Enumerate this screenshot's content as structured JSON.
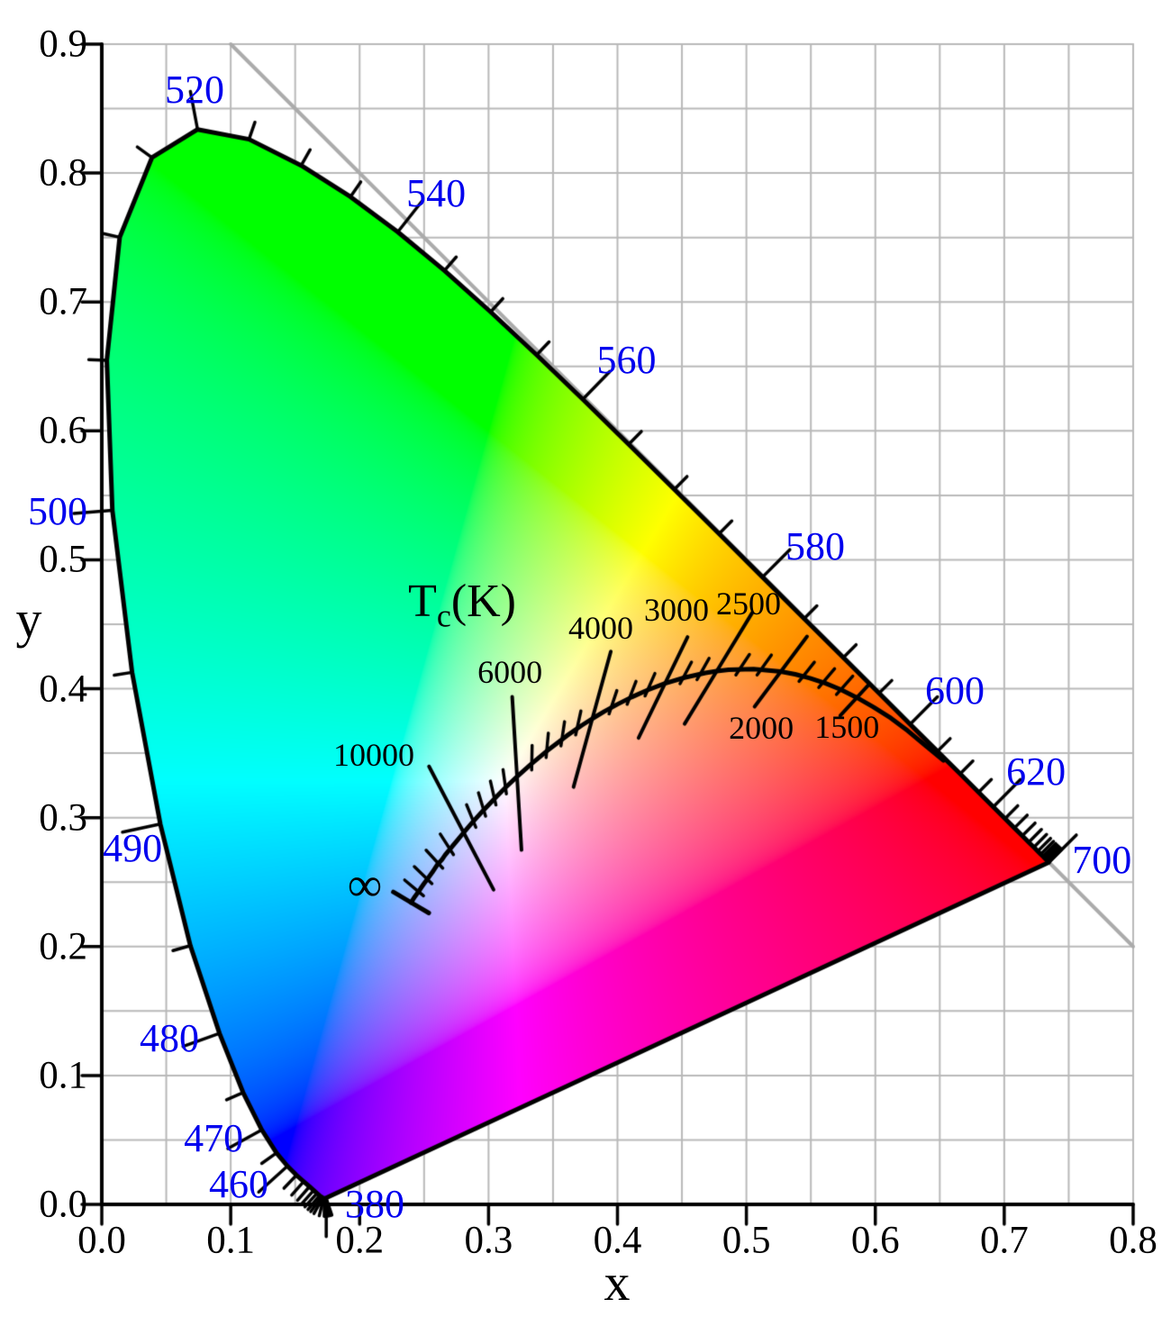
{
  "colors": {
    "background": "#ffffff",
    "grid": "#b9b9b9",
    "diagonal_line": "#ababab",
    "outline": "#000000",
    "planckian_curve": "#000000",
    "wavelength_label_color": "#0000ee",
    "temperature_label_color": "#000000",
    "axis_color": "#000000"
  },
  "chart_data": {
    "type": "line",
    "description": "CIE 1931 xy chromaticity diagram: spectral locus horseshoe filled with chromaticity colors, Planckian locus with colour-temperature isotherms, gray line x+y=1",
    "xlabel": "x",
    "ylabel": "y",
    "xlim": [
      0,
      0.8
    ],
    "ylim": [
      0,
      0.9
    ],
    "grid_step": 0.05,
    "tick_step": 0.1,
    "grid_on": true,
    "x_tick_labels": [
      "0.0",
      "0.1",
      "0.2",
      "0.3",
      "0.4",
      "0.5",
      "0.6",
      "0.7",
      "0.8"
    ],
    "y_tick_labels": [
      "0.0",
      "0.1",
      "0.2",
      "0.3",
      "0.4",
      "0.5",
      "0.6",
      "0.7",
      "0.8",
      "0.9"
    ],
    "diagonal_gray_line": {
      "x1": 0.1,
      "y1": 0.9,
      "x2": 0.8,
      "y2": 0.2
    },
    "spectral_locus": [
      [
        380,
        0.1741,
        0.005
      ],
      [
        385,
        0.174,
        0.005
      ],
      [
        390,
        0.1738,
        0.0049
      ],
      [
        395,
        0.1736,
        0.0049
      ],
      [
        400,
        0.1733,
        0.0048
      ],
      [
        405,
        0.173,
        0.0048
      ],
      [
        410,
        0.1726,
        0.0048
      ],
      [
        415,
        0.1721,
        0.0048
      ],
      [
        420,
        0.1714,
        0.0051
      ],
      [
        425,
        0.1703,
        0.0058
      ],
      [
        430,
        0.1689,
        0.0069
      ],
      [
        435,
        0.1669,
        0.0086
      ],
      [
        440,
        0.1644,
        0.0109
      ],
      [
        445,
        0.1611,
        0.0138
      ],
      [
        450,
        0.1566,
        0.0177
      ],
      [
        455,
        0.151,
        0.0227
      ],
      [
        460,
        0.144,
        0.0297
      ],
      [
        465,
        0.1355,
        0.0399
      ],
      [
        470,
        0.1241,
        0.0578
      ],
      [
        475,
        0.1096,
        0.0868
      ],
      [
        480,
        0.0913,
        0.1327
      ],
      [
        485,
        0.0687,
        0.2007
      ],
      [
        490,
        0.0454,
        0.295
      ],
      [
        495,
        0.0235,
        0.4127
      ],
      [
        500,
        0.0082,
        0.5384
      ],
      [
        505,
        0.0039,
        0.6548
      ],
      [
        510,
        0.0139,
        0.7502
      ],
      [
        515,
        0.0389,
        0.812
      ],
      [
        520,
        0.0743,
        0.8338
      ],
      [
        525,
        0.1142,
        0.8262
      ],
      [
        530,
        0.1547,
        0.8059
      ],
      [
        535,
        0.1929,
        0.7816
      ],
      [
        540,
        0.2296,
        0.7543
      ],
      [
        545,
        0.2658,
        0.7243
      ],
      [
        550,
        0.3016,
        0.6923
      ],
      [
        555,
        0.3373,
        0.6589
      ],
      [
        560,
        0.3731,
        0.6245
      ],
      [
        565,
        0.4087,
        0.5896
      ],
      [
        570,
        0.4441,
        0.5547
      ],
      [
        575,
        0.4788,
        0.5202
      ],
      [
        580,
        0.5125,
        0.4866
      ],
      [
        585,
        0.5448,
        0.4544
      ],
      [
        590,
        0.5752,
        0.4242
      ],
      [
        595,
        0.6029,
        0.3965
      ],
      [
        600,
        0.627,
        0.3725
      ],
      [
        605,
        0.6482,
        0.3514
      ],
      [
        610,
        0.6658,
        0.334
      ],
      [
        615,
        0.6801,
        0.3197
      ],
      [
        620,
        0.6915,
        0.3083
      ],
      [
        625,
        0.7006,
        0.2993
      ],
      [
        630,
        0.7079,
        0.292
      ],
      [
        635,
        0.714,
        0.2859
      ],
      [
        640,
        0.719,
        0.2809
      ],
      [
        645,
        0.723,
        0.277
      ],
      [
        650,
        0.726,
        0.274
      ],
      [
        655,
        0.7283,
        0.2717
      ],
      [
        660,
        0.73,
        0.27
      ],
      [
        665,
        0.7311,
        0.2689
      ],
      [
        670,
        0.732,
        0.268
      ],
      [
        675,
        0.7327,
        0.2673
      ],
      [
        680,
        0.7334,
        0.2666
      ],
      [
        685,
        0.734,
        0.266
      ],
      [
        690,
        0.7344,
        0.2656
      ],
      [
        695,
        0.7346,
        0.2654
      ],
      [
        700,
        0.7347,
        0.2653
      ]
    ],
    "spectral_tick_step_nm": 5,
    "wavelength_labels": [
      {
        "nm": 380,
        "text": "380",
        "x": 0.2117,
        "y": 0.0
      },
      {
        "nm": 460,
        "text": "460",
        "x": 0.1062,
        "y": 0.0154
      },
      {
        "nm": 470,
        "text": "470",
        "x": 0.0867,
        "y": 0.051
      },
      {
        "nm": 480,
        "text": "480",
        "x": 0.0524,
        "y": 0.1286
      },
      {
        "nm": 490,
        "text": "490",
        "x": 0.0238,
        "y": 0.276
      },
      {
        "nm": 500,
        "text": "500",
        "x": -0.0342,
        "y": 0.5374
      },
      {
        "nm": 520,
        "text": "520",
        "x": 0.072,
        "y": 0.8645
      },
      {
        "nm": 540,
        "text": "540",
        "x": 0.2593,
        "y": 0.7841
      },
      {
        "nm": 560,
        "text": "560",
        "x": 0.407,
        "y": 0.6545
      },
      {
        "nm": 580,
        "text": "580",
        "x": 0.5534,
        "y": 0.5101
      },
      {
        "nm": 600,
        "text": "600",
        "x": 0.6617,
        "y": 0.3983
      },
      {
        "nm": 620,
        "text": "620",
        "x": 0.7246,
        "y": 0.3354
      },
      {
        "nm": 700,
        "text": "700",
        "x": 0.7757,
        "y": 0.2669
      }
    ],
    "planckian_locus": [
      [
        1000,
        0.6528,
        0.3444
      ],
      [
        1100,
        0.6386,
        0.3562
      ],
      [
        1200,
        0.625,
        0.3675
      ],
      [
        1300,
        0.6121,
        0.3772
      ],
      [
        1400,
        0.5985,
        0.3858
      ],
      [
        1500,
        0.5857,
        0.3931
      ],
      [
        1600,
        0.5732,
        0.3993
      ],
      [
        1700,
        0.5611,
        0.4043
      ],
      [
        1800,
        0.5493,
        0.4082
      ],
      [
        1900,
        0.5378,
        0.4112
      ],
      [
        2000,
        0.5267,
        0.4133
      ],
      [
        2200,
        0.5056,
        0.4152
      ],
      [
        2400,
        0.4862,
        0.4147
      ],
      [
        2500,
        0.477,
        0.4137
      ],
      [
        2600,
        0.4682,
        0.4123
      ],
      [
        2800,
        0.4519,
        0.4086
      ],
      [
        3000,
        0.4369,
        0.4041
      ],
      [
        3200,
        0.4234,
        0.399
      ],
      [
        3400,
        0.411,
        0.3935
      ],
      [
        3600,
        0.3999,
        0.3879
      ],
      [
        3800,
        0.3897,
        0.3823
      ],
      [
        4000,
        0.3805,
        0.3768
      ],
      [
        4200,
        0.372,
        0.3714
      ],
      [
        4500,
        0.3608,
        0.3636
      ],
      [
        5000,
        0.3451,
        0.3516
      ],
      [
        5500,
        0.3325,
        0.3411
      ],
      [
        6000,
        0.3221,
        0.3318
      ],
      [
        6500,
        0.3135,
        0.3237
      ],
      [
        7000,
        0.3064,
        0.3166
      ],
      [
        7500,
        0.3004,
        0.3103
      ],
      [
        8000,
        0.2952,
        0.3048
      ],
      [
        8500,
        0.2908,
        0.3
      ],
      [
        9000,
        0.2869,
        0.2956
      ],
      [
        9500,
        0.2836,
        0.2918
      ],
      [
        10000,
        0.2807,
        0.2884
      ],
      [
        11000,
        0.2759,
        0.2826
      ],
      [
        12000,
        0.2721,
        0.278
      ],
      [
        12500,
        0.2701,
        0.2755
      ],
      [
        13000,
        0.2689,
        0.2742
      ],
      [
        14000,
        0.2663,
        0.271
      ],
      [
        15000,
        0.2637,
        0.2672
      ],
      [
        17000,
        0.2606,
        0.264
      ],
      [
        20000,
        0.2564,
        0.2576
      ],
      [
        25000,
        0.2525,
        0.2523
      ],
      [
        30000,
        0.25,
        0.2489
      ],
      [
        40000,
        0.2472,
        0.2449
      ],
      [
        50000,
        0.2457,
        0.2426
      ],
      [
        100000,
        0.2428,
        0.2387
      ],
      [
        1000000000,
        0.2399,
        0.2342
      ]
    ],
    "isotherm_labels": [
      {
        "text": "10000",
        "T": 10000,
        "x": 0.211,
        "y": 0.349,
        "above": 0.058,
        "below": 0.05
      },
      {
        "text": "6000",
        "T": 6000,
        "x": 0.3166,
        "y": 0.413,
        "above": 0.062,
        "below": 0.057
      },
      {
        "text": "4000",
        "T": 4000,
        "x": 0.3871,
        "y": 0.4472,
        "above": 0.054,
        "below": 0.055
      },
      {
        "text": "3000",
        "T": 3000,
        "x": 0.4458,
        "y": 0.4612,
        "above": 0.04,
        "below": 0.047
      },
      {
        "text": "2500",
        "T": 2500,
        "x": 0.5017,
        "y": 0.4661,
        "above": 0.053,
        "below": 0.048
      },
      {
        "text": "2000",
        "T": 2000,
        "x": 0.5115,
        "y": 0.3697,
        "above": 0.034,
        "below": 0.034
      },
      {
        "text": "1500",
        "T": 1500,
        "x": 0.578,
        "y": 0.3704,
        "above": 0.019,
        "below": 0.019
      }
    ],
    "isotherm_minor_T": [
      50000,
      25000,
      16667,
      12500,
      8824,
      7895,
      7143,
      6522,
      5455,
      5000,
      4615,
      4286,
      3692,
      3429,
      3200,
      2813,
      2647,
      2309,
      2143,
      1845,
      1714,
      1600
    ],
    "infinity_label": {
      "text": "∞",
      "x": 0.204,
      "y": 0.248
    },
    "infinity_bar": {
      "half_len": 0.016
    },
    "tc_label": {
      "t": "T",
      "sub": "c",
      "suffix": "(K)",
      "x": 0.2795,
      "y": 0.4675
    }
  }
}
